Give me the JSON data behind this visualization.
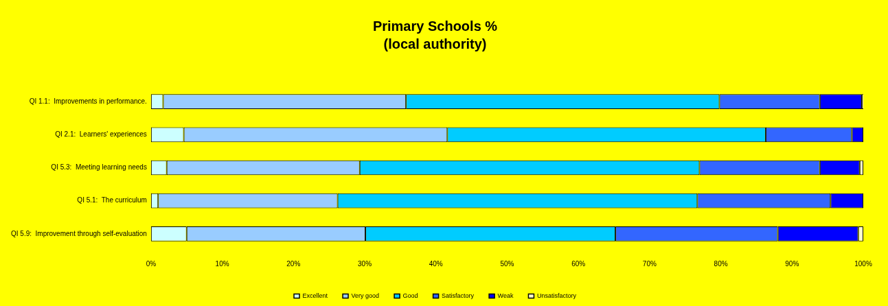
{
  "chart_data": {
    "type": "bar",
    "title": "Primary Schools %\n(local authority)",
    "orientation": "horizontal",
    "stacked": true,
    "categories": [
      "QI 1.1:  Improvements in performance.",
      "QI 2.1:  Learners' experiences",
      "QI 5.3:  Meeting learning needs",
      "QI 5.1:  The curriculum",
      "QI 5.9:  Improvement through self-evaluation"
    ],
    "series": [
      {
        "name": "Excellent",
        "color": "#ccffff",
        "values": [
          1.7,
          4.6,
          2.2,
          1.0,
          5.0
        ]
      },
      {
        "name": "Very good",
        "color": "#99ccff",
        "values": [
          34.1,
          37.0,
          27.1,
          25.2,
          25.1
        ]
      },
      {
        "name": "Good",
        "color": "#00ccff",
        "values": [
          44.0,
          44.7,
          47.7,
          50.5,
          35.1
        ]
      },
      {
        "name": "Satisfactory",
        "color": "#3366ff",
        "values": [
          14.1,
          12.1,
          16.9,
          18.7,
          22.8
        ]
      },
      {
        "name": "Weak",
        "color": "#0000ff",
        "values": [
          5.9,
          1.6,
          5.6,
          4.6,
          11.3
        ]
      },
      {
        "name": "Unsatisfactory",
        "color": "#ffffcc",
        "values": [
          0.3,
          0,
          0.5,
          0,
          0.7
        ]
      }
    ],
    "xlim": [
      0,
      100
    ],
    "xticks": [
      {
        "value": 0,
        "label": "0%"
      },
      {
        "value": 10,
        "label": "10%"
      },
      {
        "value": 20,
        "label": "20%"
      },
      {
        "value": 30,
        "label": "30%"
      },
      {
        "value": 40,
        "label": "40%"
      },
      {
        "value": 50,
        "label": "50%"
      },
      {
        "value": 60,
        "label": "60%"
      },
      {
        "value": 70,
        "label": "70%"
      },
      {
        "value": 80,
        "label": "80%"
      },
      {
        "value": 90,
        "label": "90%"
      },
      {
        "value": 100,
        "label": "100%"
      }
    ],
    "grid": false,
    "legend": "bottom"
  }
}
